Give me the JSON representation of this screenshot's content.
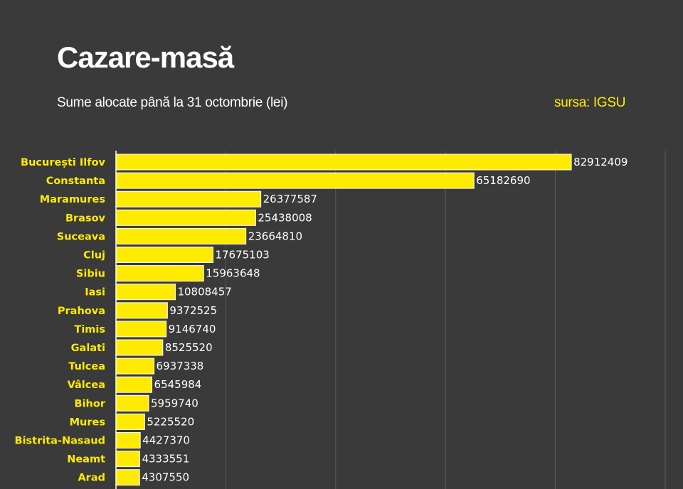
{
  "header": {
    "title": "Cazare-masă",
    "subtitle": "Sume alocate până la 31 octombrie (lei)",
    "source": "sursa: IGSU"
  },
  "colors": {
    "background": "#3a3a3a",
    "bar": "#ffeb00",
    "bar_border": "#ffffff",
    "category_text": "#ffeb00",
    "value_text": "#ffffff",
    "grid": "#5c5c5c"
  },
  "chart_data": {
    "type": "bar",
    "orientation": "horizontal",
    "title": "Cazare-masă",
    "subtitle": "Sume alocate până la 31 octombrie (lei)",
    "xlim": [
      0,
      100000000
    ],
    "grid": true,
    "categories": [
      "București Ilfov",
      "Constanta",
      "Maramures",
      "Brasov",
      "Suceava",
      "Cluj",
      "Sibiu",
      "Iasi",
      "Prahova",
      "Timis",
      "Galati",
      "Tulcea",
      "Vâlcea",
      "Bihor",
      "Mures",
      "Bistrita-Nasaud",
      "Neamt",
      "Arad"
    ],
    "values": [
      82912409,
      65182690,
      26377587,
      25438008,
      23664810,
      17675103,
      15963648,
      10808457,
      9372525,
      9146740,
      8525520,
      6937338,
      6545984,
      5959740,
      5225520,
      4427370,
      4333551,
      4307550
    ]
  }
}
